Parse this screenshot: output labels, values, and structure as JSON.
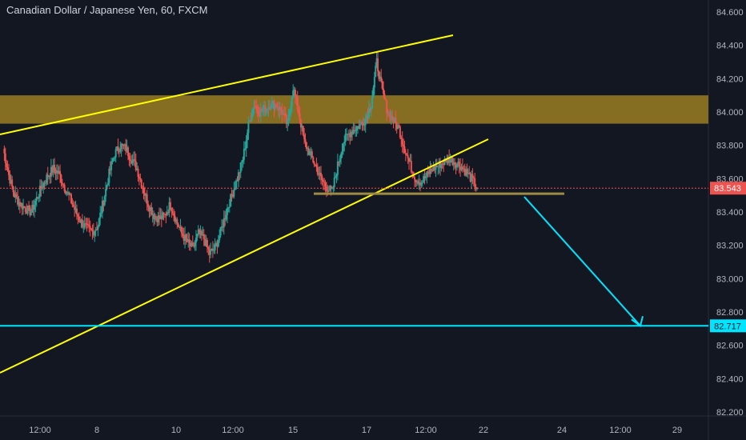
{
  "header": {
    "symbol_title": "Canadian Dollar / Japanese Yen, 60, FXCM"
  },
  "colors": {
    "background": "#131722",
    "bull": "#26a69a",
    "bear": "#ef5350",
    "trendline": "#ffff00",
    "resistance_zone": "#8b7323",
    "support_line": "#9c8a45",
    "target": "#00e5ff",
    "price_badge": "#ef5350",
    "axis_text": "#b2b5be"
  },
  "chart_data": {
    "type": "line",
    "title": "Canadian Dollar / Japanese Yen, 60, FXCM",
    "ylim": [
      82.14,
      84.72
    ],
    "x_ticks": [
      "12:00",
      "8",
      "10",
      "12:00",
      "15",
      "17",
      "12:00",
      "22",
      "24",
      "12:00",
      "29"
    ],
    "y_ticks": [
      "84.600",
      "84.400",
      "84.200",
      "84.000",
      "83.800",
      "83.600",
      "83.400",
      "83.200",
      "83.000",
      "82.800",
      "82.600",
      "82.400",
      "82.200"
    ],
    "series": [
      {
        "values": [
          83.78,
          83.62,
          83.5,
          83.45,
          83.42,
          83.4,
          83.48,
          83.56,
          83.62,
          83.66,
          83.63,
          83.55,
          83.48,
          83.4,
          83.34,
          83.3,
          83.28,
          83.32,
          83.47,
          83.63,
          83.75,
          83.8,
          83.78,
          83.72,
          83.66,
          83.55,
          83.45,
          83.38,
          83.36,
          83.38,
          83.45,
          83.35,
          83.27,
          83.22,
          83.18,
          83.27,
          83.24,
          83.15,
          83.18,
          83.28,
          83.4,
          83.5,
          83.6,
          83.72,
          83.92,
          84.05,
          84.0,
          84.02,
          84.05,
          84.04,
          84.0,
          83.92,
          84.15,
          84.0,
          83.82,
          83.75,
          83.68,
          83.6,
          83.55,
          83.52,
          83.68,
          83.82,
          83.87,
          83.9,
          83.92,
          83.96,
          84.05,
          84.3,
          84.12,
          84.0,
          83.95,
          83.9,
          83.78,
          83.68,
          83.6,
          83.58,
          83.62,
          83.66,
          83.68,
          83.7,
          83.72,
          83.7,
          83.68,
          83.64,
          83.6,
          83.543
        ]
      }
    ],
    "current_price": 83.543,
    "target_price": 82.717,
    "resistance_zone": [
      83.93,
      84.1
    ],
    "support_level": 83.51,
    "annotations": [
      "83.543",
      "82.717"
    ]
  }
}
